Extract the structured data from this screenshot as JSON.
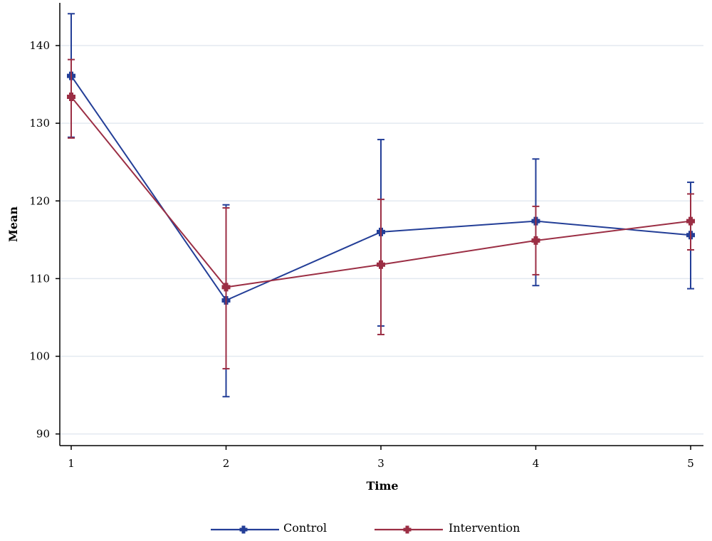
{
  "chart_data": {
    "type": "line",
    "x": [
      1,
      2,
      3,
      4,
      5
    ],
    "xlabel": "Time",
    "ylabel": "Mean",
    "yticks": [
      90,
      100,
      110,
      120,
      130,
      140
    ],
    "xticks": [
      1,
      2,
      3,
      4,
      5
    ],
    "xlim": [
      1,
      5
    ],
    "ylim": [
      88.5,
      145.5
    ],
    "grid": "horizontal",
    "legend_position": "bottom",
    "series": [
      {
        "name": "Control",
        "color": "#233e97",
        "mean": [
          136.1,
          107.2,
          116.0,
          117.4,
          115.6
        ],
        "lower": [
          128.2,
          94.8,
          103.9,
          109.1,
          108.7
        ],
        "upper": [
          144.1,
          119.5,
          127.9,
          125.4,
          122.4
        ]
      },
      {
        "name": "Intervention",
        "color": "#9b2e44",
        "mean": [
          133.4,
          108.9,
          111.8,
          114.9,
          117.4
        ],
        "lower": [
          128.1,
          98.4,
          102.8,
          110.5,
          113.7
        ],
        "upper": [
          138.2,
          119.1,
          120.2,
          119.3,
          120.9
        ]
      }
    ]
  }
}
